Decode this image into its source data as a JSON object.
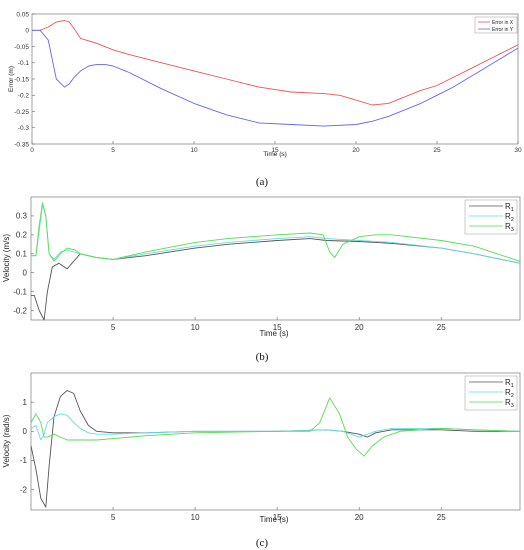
{
  "chart_data": [
    {
      "panel": "a",
      "caption": "(a)",
      "type": "line",
      "xlabel": "Time (s)",
      "ylabel": "Error (m)",
      "xlim": [
        0,
        30
      ],
      "ylim": [
        -0.35,
        0.05
      ],
      "xticks": [
        0,
        5,
        10,
        15,
        20,
        25,
        30
      ],
      "yticks": [
        0.05,
        0,
        -0.05,
        -0.1,
        -0.15,
        -0.2,
        -0.25,
        -0.3,
        -0.35
      ],
      "ytick_labels": [
        "0.05",
        "0",
        "-0.05",
        "-0.1",
        "-0.15",
        "-0.2",
        "-0.25",
        "-0.3",
        "-0.35"
      ],
      "legend": "top-right",
      "grid": false,
      "series": [
        {
          "name": "Error in X",
          "color": "#ee5555",
          "x": [
            0,
            0.5,
            1.0,
            1.5,
            2.0,
            2.3,
            2.6,
            3.0,
            4,
            5,
            6,
            8,
            10,
            12,
            14,
            16,
            18,
            19,
            20,
            21,
            22,
            23,
            24,
            25,
            26,
            27,
            28,
            29,
            30
          ],
          "y": [
            0,
            0,
            0.01,
            0.025,
            0.03,
            0.025,
            0.005,
            -0.025,
            -0.04,
            -0.06,
            -0.075,
            -0.1,
            -0.125,
            -0.15,
            -0.175,
            -0.19,
            -0.195,
            -0.2,
            -0.215,
            -0.23,
            -0.225,
            -0.205,
            -0.185,
            -0.17,
            -0.145,
            -0.12,
            -0.095,
            -0.07,
            -0.045
          ]
        },
        {
          "name": "Error in Y",
          "color": "#6666ee",
          "x": [
            0,
            0.5,
            1.0,
            1.5,
            2.0,
            2.3,
            2.6,
            3.0,
            3.5,
            4,
            4.5,
            5,
            6,
            8,
            10,
            12,
            14,
            16,
            18,
            20,
            21,
            22,
            23,
            24,
            25,
            26,
            27,
            28,
            29,
            30
          ],
          "y": [
            0,
            0,
            -0.03,
            -0.15,
            -0.175,
            -0.165,
            -0.145,
            -0.125,
            -0.11,
            -0.105,
            -0.105,
            -0.11,
            -0.13,
            -0.18,
            -0.225,
            -0.26,
            -0.285,
            -0.29,
            -0.295,
            -0.29,
            -0.28,
            -0.265,
            -0.245,
            -0.225,
            -0.2,
            -0.175,
            -0.145,
            -0.115,
            -0.085,
            -0.055
          ]
        }
      ]
    },
    {
      "panel": "b",
      "caption": "(b)",
      "type": "line",
      "xlabel": "Time (s)",
      "ylabel": "Velocity (m/s)",
      "xlim": [
        0,
        29.8
      ],
      "ylim": [
        -0.25,
        0.4
      ],
      "xticks": [
        5,
        10,
        15,
        20,
        25
      ],
      "yticks": [
        0.3,
        0.2,
        0.1,
        0,
        -0.1,
        -0.2
      ],
      "ytick_labels": [
        "0.3",
        "0.2",
        "0.1",
        "0",
        "-0.1",
        "-0.2"
      ],
      "legend": "top-right",
      "grid": false,
      "series": [
        {
          "name": "R1",
          "legend_main": "R",
          "legend_sub": "1",
          "color": "#555555",
          "x": [
            0,
            0.2,
            0.5,
            0.8,
            1.0,
            1.3,
            1.7,
            2.2,
            2.7,
            3.0,
            4,
            5,
            7,
            10,
            12,
            15,
            17,
            18,
            20,
            22,
            25,
            27,
            29.8
          ],
          "y": [
            -0.12,
            -0.12,
            -0.2,
            -0.25,
            -0.1,
            0.03,
            0.05,
            0.02,
            0.07,
            0.1,
            0.08,
            0.07,
            0.09,
            0.13,
            0.15,
            0.17,
            0.18,
            0.17,
            0.165,
            0.155,
            0.13,
            0.1,
            0.05
          ]
        },
        {
          "name": "R2",
          "legend_main": "R",
          "legend_sub": "2",
          "color": "#66dddd",
          "x": [
            0,
            0.3,
            0.5,
            0.7,
            0.9,
            1.1,
            1.4,
            1.8,
            2.2,
            3.0,
            4,
            5,
            7,
            10,
            12,
            15,
            17,
            18,
            20,
            22,
            25,
            27,
            29.8
          ],
          "y": [
            0.09,
            0.09,
            0.22,
            0.36,
            0.3,
            0.1,
            0.07,
            0.11,
            0.12,
            0.1,
            0.08,
            0.07,
            0.1,
            0.14,
            0.16,
            0.18,
            0.19,
            0.18,
            0.17,
            0.16,
            0.13,
            0.1,
            0.05
          ]
        },
        {
          "name": "R3",
          "legend_main": "R",
          "legend_sub": "3",
          "color": "#55dd55",
          "x": [
            0,
            0.3,
            0.5,
            0.7,
            0.9,
            1.1,
            1.4,
            1.8,
            2.2,
            2.7,
            3.0,
            4,
            5,
            7,
            10,
            12,
            15,
            17,
            17.8,
            18.2,
            18.5,
            19,
            20,
            21,
            22,
            25,
            27,
            29.8
          ],
          "y": [
            0.09,
            0.09,
            0.25,
            0.37,
            0.3,
            0.1,
            0.06,
            0.1,
            0.13,
            0.12,
            0.1,
            0.08,
            0.07,
            0.11,
            0.16,
            0.18,
            0.2,
            0.21,
            0.2,
            0.11,
            0.08,
            0.15,
            0.19,
            0.2,
            0.2,
            0.17,
            0.14,
            0.06
          ]
        }
      ]
    },
    {
      "panel": "c",
      "caption": "(c)",
      "type": "line",
      "xlabel": "Time (s)",
      "ylabel": "Velocity (rad/s)",
      "xlim": [
        0,
        29.8
      ],
      "ylim": [
        -2.7,
        2.0
      ],
      "xticks": [
        5,
        10,
        15,
        20,
        25
      ],
      "yticks": [
        1,
        0,
        -1,
        -2
      ],
      "ytick_labels": [
        "1",
        "0",
        "-1",
        "-2"
      ],
      "legend": "top-right",
      "grid": false,
      "series": [
        {
          "name": "R1",
          "legend_main": "R",
          "legend_sub": "1",
          "color": "#555555",
          "x": [
            0,
            0.3,
            0.6,
            0.9,
            1.1,
            1.4,
            1.8,
            2.2,
            2.6,
            3.0,
            3.5,
            4,
            5,
            7,
            10,
            15,
            18,
            19,
            20,
            20.5,
            21,
            22,
            25,
            27,
            29.8
          ],
          "y": [
            -0.5,
            -1.3,
            -2.3,
            -2.6,
            -1.2,
            0.5,
            1.2,
            1.4,
            1.3,
            0.7,
            0.2,
            0.0,
            -0.05,
            -0.05,
            0.0,
            0.0,
            0.05,
            0.0,
            -0.1,
            -0.2,
            -0.05,
            0.05,
            0.05,
            0.0,
            0.0
          ]
        },
        {
          "name": "R2",
          "legend_main": "R",
          "legend_sub": "2",
          "color": "#66dddd",
          "x": [
            0,
            0.3,
            0.6,
            0.8,
            1.0,
            1.4,
            1.8,
            2.2,
            2.6,
            3.0,
            3.5,
            4,
            5,
            7,
            10,
            15,
            18,
            19,
            20,
            20.5,
            21,
            22,
            25,
            27,
            29.8
          ],
          "y": [
            0.1,
            0.2,
            -0.3,
            -0.1,
            0.3,
            0.5,
            0.6,
            0.55,
            0.3,
            0.1,
            -0.05,
            -0.1,
            -0.1,
            -0.05,
            0.0,
            0.0,
            0.05,
            0.0,
            -0.2,
            -0.1,
            0.0,
            0.1,
            0.1,
            0.05,
            0.0
          ]
        },
        {
          "name": "R3",
          "legend_main": "R",
          "legend_sub": "3",
          "color": "#55dd55",
          "x": [
            0,
            0.3,
            0.6,
            0.8,
            1.0,
            1.4,
            1.8,
            2.2,
            3.0,
            4,
            5,
            7,
            10,
            15,
            17,
            17.6,
            18.2,
            18.8,
            19.3,
            19.8,
            20.3,
            20.8,
            21.5,
            22.5,
            25,
            27,
            29.8
          ],
          "y": [
            0.3,
            0.6,
            0.3,
            -0.2,
            -0.2,
            -0.1,
            -0.2,
            -0.3,
            -0.3,
            -0.3,
            -0.25,
            -0.15,
            -0.05,
            0.0,
            0.0,
            0.3,
            1.15,
            0.6,
            -0.2,
            -0.6,
            -0.85,
            -0.5,
            -0.2,
            0.0,
            0.1,
            0.05,
            0.0
          ]
        }
      ]
    }
  ]
}
